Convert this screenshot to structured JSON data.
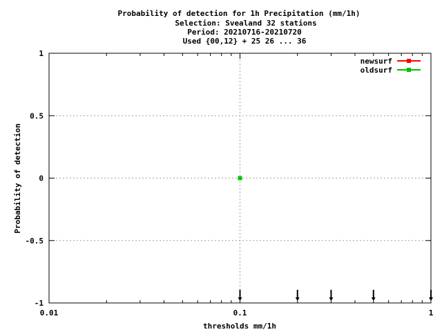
{
  "chart_data": {
    "type": "line",
    "title_lines": [
      "Probability of detection  for 1h Precipitation (mm/1h)",
      "Selection: Svealand     32 stations",
      "Period: 20210716-20210720",
      "Used {00,12} + 25 26 ... 36"
    ],
    "xlabel": "thresholds mm/1h",
    "ylabel": "Probability of detection",
    "x_scale": "log",
    "xlim": [
      0.01,
      1
    ],
    "ylim": [
      -1,
      1
    ],
    "x_ticks": [
      {
        "value": 0.01,
        "label": "0.01"
      },
      {
        "value": 0.1,
        "label": "0.1"
      },
      {
        "value": 1,
        "label": "1"
      }
    ],
    "y_ticks": [
      {
        "value": 1,
        "label": "1"
      },
      {
        "value": 0.5,
        "label": "0.5"
      },
      {
        "value": 0,
        "label": "0"
      },
      {
        "value": -0.5,
        "label": "-0.5"
      },
      {
        "value": -1,
        "label": "-1"
      }
    ],
    "grid": true,
    "legend_position": "top-right",
    "series": [
      {
        "name": "newsurf",
        "color": "#ff0000",
        "x": [
          0.1
        ],
        "y": [
          0
        ]
      },
      {
        "name": "oldsurf",
        "color": "#00c000",
        "x": [
          0.1
        ],
        "y": [
          0
        ]
      }
    ],
    "threshold_markers": [
      0.1,
      0.2,
      0.3,
      0.5,
      1.0
    ]
  }
}
